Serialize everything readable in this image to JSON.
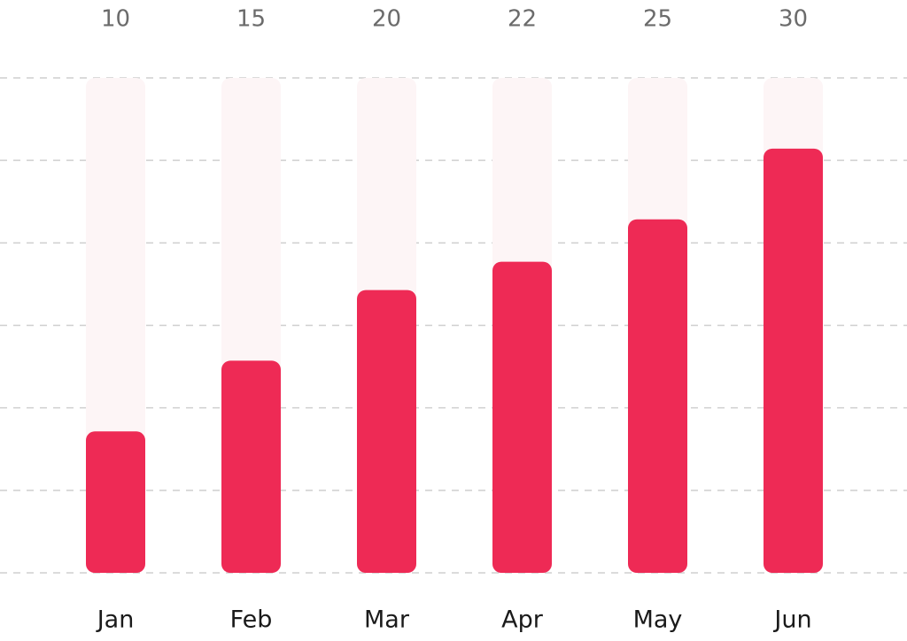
{
  "chart_data": {
    "type": "bar",
    "categories": [
      "Jan",
      "Feb",
      "Mar",
      "Apr",
      "May",
      "Jun"
    ],
    "values": [
      10,
      15,
      20,
      22,
      25,
      30
    ],
    "color": "#ee2a55",
    "track_color": "#fdf5f6",
    "ylim": [
      0,
      35
    ],
    "grid": true
  }
}
